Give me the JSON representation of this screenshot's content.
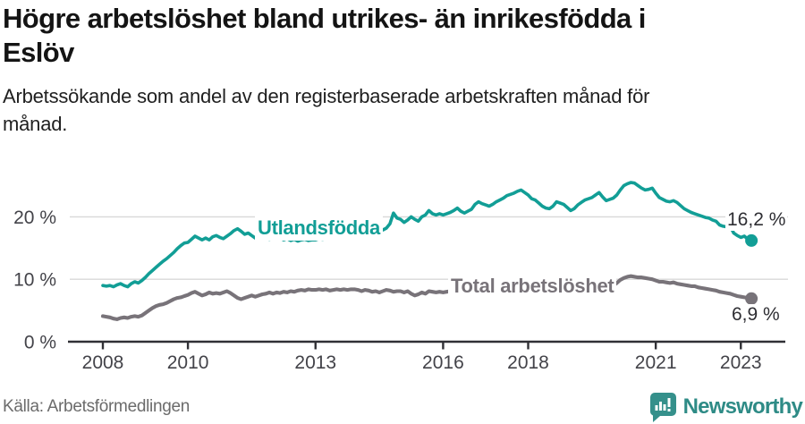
{
  "header": {
    "title_lines": [
      "Högre arbetslöshet bland utrikes- än inrikesfödda i",
      "Eslöv"
    ],
    "subtitle": "Arbetssökande som andel av den registerbaserade arbetskraften månad för månad."
  },
  "chart_data": {
    "type": "line",
    "title": "Högre arbetslöshet bland utrikes- än inrikesfödda i Eslöv",
    "x_start": "2008-01",
    "x_end": "2023-04",
    "frequency": "monthly",
    "grid": "horizontal-only",
    "x_axis": {
      "ticks": [
        {
          "year": 2008,
          "label": "2008"
        },
        {
          "year": 2010,
          "label": "2010"
        },
        {
          "year": 2013,
          "label": "2013"
        },
        {
          "year": 2016,
          "label": "2016"
        },
        {
          "year": 2018,
          "label": "2018"
        },
        {
          "year": 2021,
          "label": "2021"
        },
        {
          "year": 2023,
          "label": "2023"
        }
      ]
    },
    "y_axis": {
      "unit": "%",
      "min": 0,
      "max": 26,
      "ticks": [
        {
          "value": 0,
          "label": "0 %"
        },
        {
          "value": 10,
          "label": "10 %"
        },
        {
          "value": 20,
          "label": "20 %"
        }
      ]
    },
    "series": [
      {
        "name": "utlandsfodda",
        "label": "Utlandsfödda",
        "color": "#129e96",
        "end_value": 16.2,
        "end_label": "16,2 %",
        "values": [
          9.0,
          8.9,
          9.0,
          8.8,
          9.1,
          9.3,
          9.0,
          8.8,
          9.3,
          9.6,
          9.4,
          9.8,
          10.3,
          10.9,
          11.4,
          11.9,
          12.4,
          12.9,
          13.3,
          13.8,
          14.3,
          14.9,
          15.4,
          15.8,
          15.9,
          16.4,
          16.9,
          16.6,
          16.3,
          16.6,
          16.3,
          16.8,
          17.0,
          16.7,
          16.5,
          16.9,
          17.3,
          17.8,
          18.1,
          17.7,
          17.2,
          17.4,
          17.0,
          16.6,
          16.8,
          17.0,
          16.6,
          16.4,
          16.6,
          16.9,
          16.6,
          16.3,
          16.5,
          16.2,
          16.4,
          16.1,
          16.3,
          16.4,
          16.2,
          16.3,
          16.3,
          16.5,
          16.4,
          16.6,
          16.5,
          16.7,
          16.6,
          16.8,
          16.9,
          16.7,
          16.9,
          17.0,
          17.1,
          16.9,
          17.2,
          17.4,
          17.3,
          17.5,
          17.7,
          17.9,
          18.2,
          18.9,
          20.6,
          19.8,
          19.6,
          19.1,
          19.5,
          20.0,
          19.6,
          19.3,
          20.0,
          20.3,
          21.0,
          20.5,
          20.3,
          20.5,
          20.3,
          20.5,
          20.7,
          21.0,
          21.4,
          20.9,
          20.6,
          20.9,
          21.2,
          22.0,
          22.4,
          22.1,
          21.9,
          21.7,
          22.0,
          22.4,
          22.7,
          23.0,
          23.4,
          23.6,
          23.8,
          24.1,
          24.3,
          23.9,
          23.5,
          22.9,
          22.7,
          22.2,
          21.7,
          21.4,
          21.3,
          21.7,
          22.4,
          22.2,
          22.0,
          21.5,
          21.0,
          21.3,
          21.9,
          22.3,
          22.7,
          22.9,
          23.1,
          23.5,
          23.9,
          23.2,
          22.6,
          22.8,
          23.0,
          23.5,
          24.3,
          25.0,
          25.3,
          25.5,
          25.4,
          25.0,
          24.6,
          24.3,
          24.4,
          24.6,
          23.8,
          23.1,
          22.8,
          22.5,
          22.4,
          22.6,
          22.3,
          21.8,
          21.3,
          21.0,
          20.7,
          20.5,
          20.3,
          20.1,
          19.9,
          19.8,
          19.5,
          19.3,
          18.7,
          18.5,
          18.4,
          18.5,
          17.4,
          17.0,
          16.7,
          16.9,
          16.4,
          16.2
        ]
      },
      {
        "name": "total",
        "label": "Total arbetslöshet",
        "color": "#787379",
        "end_value": 6.9,
        "end_label": "6,9 %",
        "values": [
          4.1,
          4.0,
          3.9,
          3.7,
          3.6,
          3.8,
          3.9,
          3.8,
          4.0,
          4.1,
          4.0,
          4.2,
          4.6,
          5.0,
          5.4,
          5.7,
          5.9,
          6.0,
          6.2,
          6.5,
          6.8,
          7.0,
          7.1,
          7.3,
          7.5,
          7.8,
          8.0,
          7.7,
          7.4,
          7.6,
          7.9,
          7.7,
          7.8,
          7.7,
          7.9,
          8.1,
          7.8,
          7.4,
          7.0,
          6.8,
          7.0,
          7.2,
          7.4,
          7.2,
          7.4,
          7.6,
          7.7,
          7.9,
          7.7,
          7.9,
          7.8,
          8.0,
          7.9,
          8.1,
          8.0,
          8.2,
          8.3,
          8.2,
          8.4,
          8.3,
          8.3,
          8.4,
          8.3,
          8.4,
          8.2,
          8.3,
          8.4,
          8.3,
          8.4,
          8.3,
          8.4,
          8.4,
          8.3,
          8.1,
          8.3,
          8.2,
          8.0,
          8.1,
          7.9,
          8.1,
          8.3,
          8.2,
          8.0,
          8.1,
          8.1,
          7.9,
          8.1,
          7.7,
          7.4,
          7.6,
          7.9,
          7.7,
          8.1,
          8.0,
          7.9,
          8.0,
          7.9,
          8.0,
          8.1,
          8.0,
          8.2,
          8.1,
          8.0,
          8.2,
          8.3,
          8.4,
          8.3,
          8.4,
          8.4,
          8.5,
          8.4,
          8.5,
          8.6,
          8.5,
          8.6,
          8.5,
          8.6,
          8.7,
          8.6,
          8.7,
          8.6,
          8.5,
          8.6,
          8.4,
          8.3,
          8.4,
          8.3,
          8.4,
          8.5,
          8.4,
          8.3,
          8.2,
          8.2,
          8.3,
          8.4,
          8.5,
          8.6,
          8.7,
          8.8,
          8.9,
          9.0,
          8.9,
          8.8,
          8.9,
          9.0,
          9.4,
          9.9,
          10.2,
          10.4,
          10.5,
          10.4,
          10.3,
          10.3,
          10.2,
          10.1,
          10.0,
          9.8,
          9.6,
          9.6,
          9.5,
          9.4,
          9.5,
          9.3,
          9.2,
          9.1,
          9.0,
          8.9,
          8.9,
          8.7,
          8.6,
          8.5,
          8.4,
          8.3,
          8.2,
          8.0,
          7.9,
          7.8,
          7.7,
          7.5,
          7.3,
          7.2,
          7.1,
          7.0,
          6.9
        ]
      }
    ],
    "style": {
      "gridline_color": "#d8d8d8",
      "axis_color": "#303035",
      "tick_text_color": "#434349",
      "value_label_color": "#2e2e33"
    }
  },
  "footer": {
    "source": "Källa: Arbetsförmedlingen",
    "brand": "Newsworthy",
    "brand_color": "#2e8b86",
    "brand_icon_color": "#35908b"
  }
}
